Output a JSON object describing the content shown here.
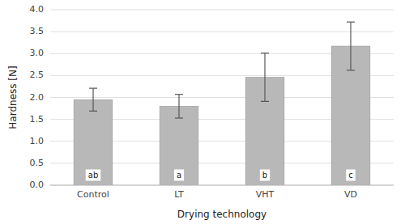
{
  "chart_data": {
    "type": "bar",
    "categories": [
      "Control",
      "LT",
      "VHT",
      "VD"
    ],
    "values": [
      1.95,
      1.8,
      2.46,
      3.17
    ],
    "errors": [
      0.26,
      0.27,
      0.55,
      0.55
    ],
    "annotations": [
      "ab",
      "a",
      "b",
      "c"
    ],
    "color": "#b8b8b8",
    "x_label": "Drying technology",
    "y_label": "Hardness [N]",
    "ylim": [
      0.0,
      4.0
    ],
    "yticks": [
      {
        "value": 0.0,
        "label": "0.0"
      },
      0.5,
      {
        "value": 1.0,
        "label": "1.0"
      },
      1.5,
      {
        "value": 2.0,
        "label": "2.0"
      },
      2.5,
      {
        "value": 3.0,
        "label": "3.0"
      },
      3.5,
      {
        "value": 4.0,
        "label": "4.0"
      }
    ],
    "grid": true
  }
}
